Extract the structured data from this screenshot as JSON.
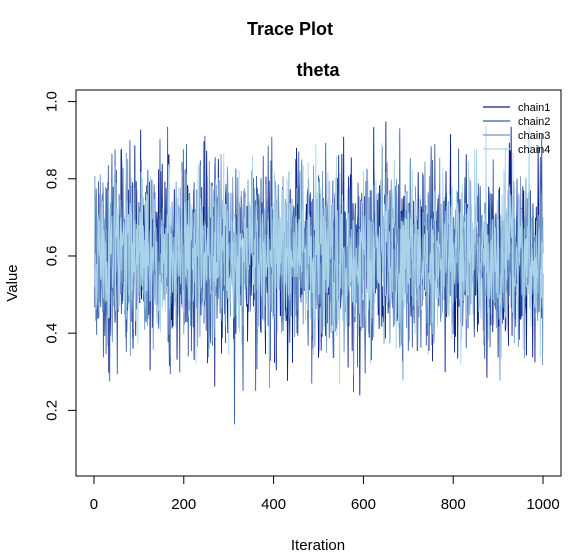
{
  "chart_data": {
    "type": "line",
    "title": "Trace Plot",
    "subtitle": "theta",
    "xlabel": "Iteration",
    "ylabel": "Value",
    "xlim": [
      -40,
      1040
    ],
    "ylim": [
      0.03,
      1.03
    ],
    "x_ticks": [
      "0",
      "200",
      "400",
      "600",
      "800",
      "1000"
    ],
    "y_ticks": [
      "0.2",
      "0.4",
      "0.6",
      "0.8",
      "1.0"
    ],
    "x_tick_values": [
      0,
      200,
      400,
      600,
      800,
      1000
    ],
    "y_tick_values": [
      0.2,
      0.4,
      0.6,
      0.8,
      1.0
    ],
    "legend_position": "top-right",
    "iterations": 1000,
    "series": [
      {
        "name": "chain1",
        "color": "#0a1e8a",
        "mean": 0.6,
        "sd": 0.12,
        "seed": 11
      },
      {
        "name": "chain2",
        "color": "#3b5aa6",
        "mean": 0.6,
        "sd": 0.12,
        "seed": 23
      },
      {
        "name": "chain3",
        "color": "#6f96c8",
        "mean": 0.6,
        "sd": 0.11,
        "seed": 37
      },
      {
        "name": "chain4",
        "color": "#a9d4ea",
        "mean": 0.6,
        "sd": 0.11,
        "seed": 51
      }
    ]
  }
}
